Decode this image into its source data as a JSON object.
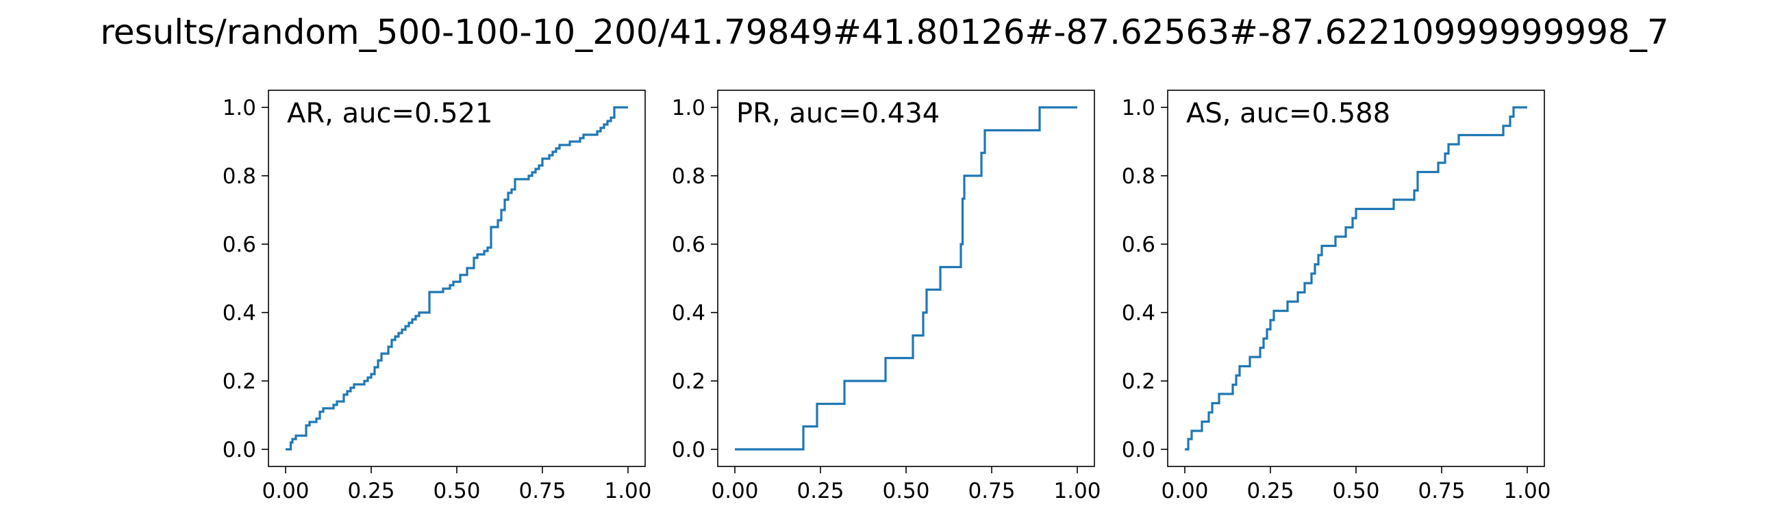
{
  "title": "results/random_500-100-10_200/41.79849#41.80126#-87.62563#-87.62210999999998_7",
  "line_color": "#1f77b4",
  "chart_data": [
    {
      "type": "line",
      "title": "AR, auc=0.521",
      "xlabel": "",
      "ylabel": "",
      "xlim": [
        -0.05,
        1.05
      ],
      "ylim": [
        -0.05,
        1.05
      ],
      "xticks": [
        "0.00",
        "0.25",
        "0.50",
        "0.75",
        "1.00"
      ],
      "yticks": [
        "0.0",
        "0.2",
        "0.4",
        "0.6",
        "0.8",
        "1.0"
      ],
      "grid": false,
      "step": true,
      "x": [
        0,
        0.015,
        0.02,
        0.03,
        0.06,
        0.07,
        0.09,
        0.1,
        0.11,
        0.14,
        0.15,
        0.17,
        0.18,
        0.19,
        0.2,
        0.23,
        0.24,
        0.25,
        0.26,
        0.27,
        0.28,
        0.3,
        0.31,
        0.32,
        0.33,
        0.34,
        0.35,
        0.36,
        0.37,
        0.38,
        0.39,
        0.42,
        0.43,
        0.46,
        0.48,
        0.49,
        0.51,
        0.53,
        0.55,
        0.56,
        0.58,
        0.59,
        0.6,
        0.62,
        0.63,
        0.64,
        0.65,
        0.66,
        0.67,
        0.71,
        0.72,
        0.73,
        0.74,
        0.75,
        0.77,
        0.78,
        0.79,
        0.8,
        0.83,
        0.86,
        0.87,
        0.88,
        0.91,
        0.92,
        0.93,
        0.94,
        0.95,
        0.96,
        1.0
      ],
      "y": [
        0.0,
        0.02,
        0.03,
        0.04,
        0.07,
        0.08,
        0.09,
        0.11,
        0.12,
        0.13,
        0.14,
        0.16,
        0.17,
        0.18,
        0.19,
        0.2,
        0.21,
        0.22,
        0.24,
        0.26,
        0.28,
        0.3,
        0.32,
        0.33,
        0.34,
        0.35,
        0.36,
        0.37,
        0.38,
        0.39,
        0.4,
        0.46,
        0.46,
        0.47,
        0.48,
        0.49,
        0.51,
        0.53,
        0.56,
        0.57,
        0.58,
        0.59,
        0.65,
        0.67,
        0.7,
        0.73,
        0.75,
        0.76,
        0.79,
        0.8,
        0.81,
        0.82,
        0.83,
        0.85,
        0.86,
        0.87,
        0.88,
        0.89,
        0.9,
        0.91,
        0.92,
        0.92,
        0.93,
        0.94,
        0.95,
        0.96,
        0.97,
        1.0,
        1.0
      ]
    },
    {
      "type": "line",
      "title": "PR, auc=0.434",
      "xlabel": "",
      "ylabel": "",
      "xlim": [
        -0.05,
        1.05
      ],
      "ylim": [
        -0.05,
        1.05
      ],
      "xticks": [
        "0.00",
        "0.25",
        "0.50",
        "0.75",
        "1.00"
      ],
      "yticks": [
        "0.0",
        "0.2",
        "0.4",
        "0.6",
        "0.8",
        "1.0"
      ],
      "grid": false,
      "step": true,
      "x": [
        0,
        0.2,
        0.24,
        0.32,
        0.44,
        0.52,
        0.55,
        0.56,
        0.6,
        0.66,
        0.665,
        0.67,
        0.72,
        0.73,
        0.89,
        1.0
      ],
      "y": [
        0.0,
        0.067,
        0.133,
        0.2,
        0.267,
        0.333,
        0.4,
        0.467,
        0.533,
        0.6,
        0.733,
        0.8,
        0.867,
        0.933,
        1.0,
        1.0
      ]
    },
    {
      "type": "line",
      "title": "AS, auc=0.588",
      "xlabel": "",
      "ylabel": "",
      "xlim": [
        -0.05,
        1.05
      ],
      "ylim": [
        -0.05,
        1.05
      ],
      "xticks": [
        "0.00",
        "0.25",
        "0.50",
        "0.75",
        "1.00"
      ],
      "yticks": [
        "0.0",
        "0.2",
        "0.4",
        "0.6",
        "0.8",
        "1.0"
      ],
      "grid": false,
      "step": true,
      "x": [
        0,
        0.01,
        0.02,
        0.05,
        0.07,
        0.08,
        0.1,
        0.14,
        0.15,
        0.16,
        0.19,
        0.22,
        0.23,
        0.24,
        0.25,
        0.26,
        0.3,
        0.33,
        0.35,
        0.37,
        0.38,
        0.39,
        0.4,
        0.44,
        0.47,
        0.49,
        0.5,
        0.61,
        0.67,
        0.68,
        0.74,
        0.76,
        0.77,
        0.8,
        0.93,
        0.95,
        0.96,
        1.0
      ],
      "y": [
        0.0,
        0.03,
        0.054,
        0.081,
        0.108,
        0.135,
        0.162,
        0.189,
        0.216,
        0.243,
        0.27,
        0.297,
        0.324,
        0.351,
        0.378,
        0.405,
        0.432,
        0.459,
        0.486,
        0.514,
        0.541,
        0.568,
        0.595,
        0.622,
        0.649,
        0.676,
        0.703,
        0.73,
        0.757,
        0.811,
        0.838,
        0.865,
        0.892,
        0.919,
        0.946,
        0.973,
        1.0,
        1.0
      ]
    }
  ]
}
